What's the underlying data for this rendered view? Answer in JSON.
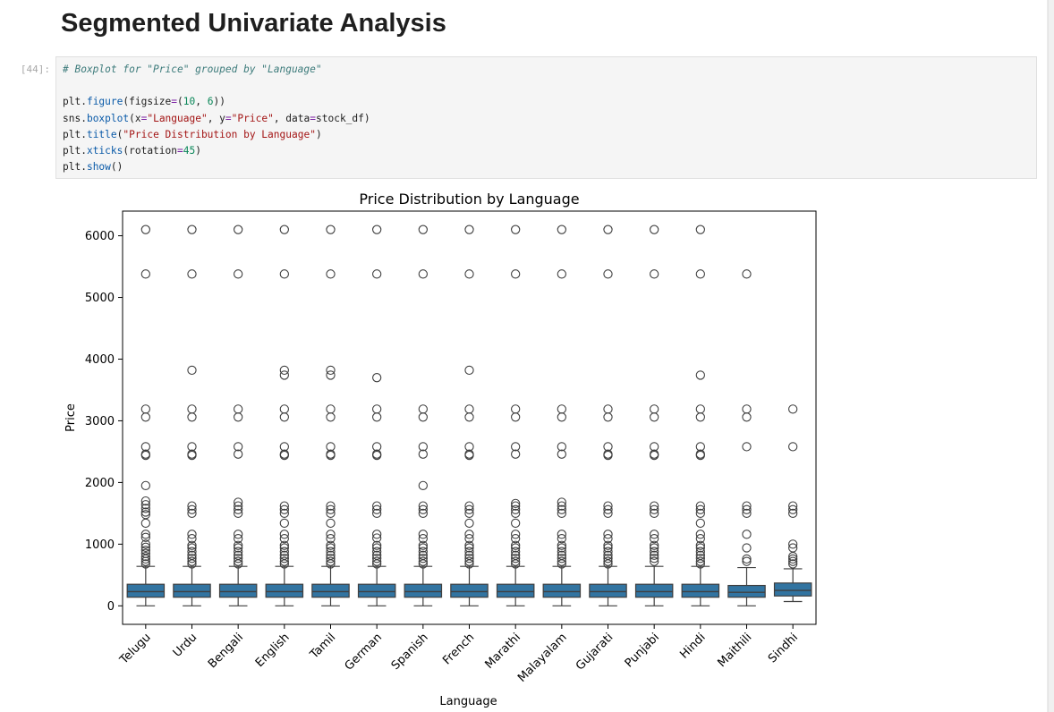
{
  "page": {
    "heading": "Segmented Univariate Analysis",
    "cell_prompt": "[44]:",
    "code_lines": [
      "# Boxplot for \"Price\" grouped by \"Language\"",
      "",
      "plt.figure(figsize=(10, 6))",
      "sns.boxplot(x=\"Language\", y=\"Price\", data=stock_df)",
      "plt.title(\"Price Distribution by Language\")",
      "plt.xticks(rotation=45)",
      "plt.show()"
    ]
  },
  "colors": {
    "box_fill": "#3274a1",
    "line": "#3f3f3f"
  },
  "chart_data": {
    "type": "box",
    "title": "Price Distribution by Language",
    "xlabel": "Language",
    "ylabel": "Price",
    "ylim": [
      -300,
      6400
    ],
    "yticks": [
      0,
      1000,
      2000,
      3000,
      4000,
      5000,
      6000
    ],
    "categories": [
      "Telugu",
      "Urdu",
      "Bengali",
      "English",
      "Tamil",
      "German",
      "Spanish",
      "French",
      "Marathi",
      "Malayalam",
      "Gujarati",
      "Punjabi",
      "Hindi",
      "Maithili",
      "Sindhi"
    ],
    "boxes": [
      {
        "q1": 140,
        "median": 230,
        "q3": 350,
        "whislo": 0,
        "whishi": 640
      },
      {
        "q1": 140,
        "median": 230,
        "q3": 350,
        "whislo": 0,
        "whishi": 640
      },
      {
        "q1": 140,
        "median": 230,
        "q3": 350,
        "whislo": 0,
        "whishi": 640
      },
      {
        "q1": 140,
        "median": 230,
        "q3": 350,
        "whislo": 0,
        "whishi": 640
      },
      {
        "q1": 140,
        "median": 230,
        "q3": 350,
        "whislo": 0,
        "whishi": 640
      },
      {
        "q1": 140,
        "median": 230,
        "q3": 350,
        "whislo": 0,
        "whishi": 640
      },
      {
        "q1": 140,
        "median": 230,
        "q3": 350,
        "whislo": 0,
        "whishi": 640
      },
      {
        "q1": 140,
        "median": 230,
        "q3": 350,
        "whislo": 0,
        "whishi": 640
      },
      {
        "q1": 140,
        "median": 230,
        "q3": 350,
        "whislo": 0,
        "whishi": 640
      },
      {
        "q1": 140,
        "median": 230,
        "q3": 350,
        "whislo": 0,
        "whishi": 640
      },
      {
        "q1": 140,
        "median": 230,
        "q3": 350,
        "whislo": 0,
        "whishi": 640
      },
      {
        "q1": 140,
        "median": 230,
        "q3": 350,
        "whislo": 0,
        "whishi": 640
      },
      {
        "q1": 140,
        "median": 230,
        "q3": 350,
        "whislo": 0,
        "whishi": 640
      },
      {
        "q1": 140,
        "median": 220,
        "q3": 330,
        "whislo": 0,
        "whishi": 620
      },
      {
        "q1": 160,
        "median": 250,
        "q3": 370,
        "whislo": 70,
        "whishi": 600
      }
    ],
    "outliers": [
      [
        6100,
        5380,
        3190,
        3060,
        2580,
        2460,
        2440,
        1950,
        1700,
        1640,
        1580,
        1520,
        1480,
        1340,
        1160,
        1110,
        1000,
        950,
        900,
        850,
        800,
        760,
        720,
        680
      ],
      [
        6100,
        5380,
        3820,
        3190,
        3060,
        2580,
        2460,
        2440,
        1620,
        1560,
        1500,
        1160,
        1090,
        980,
        940,
        880,
        820,
        770,
        720,
        680
      ],
      [
        6100,
        5380,
        3190,
        3060,
        2580,
        2460,
        1680,
        1620,
        1560,
        1500,
        1160,
        1090,
        980,
        940,
        880,
        820,
        770,
        720,
        680
      ],
      [
        6100,
        5380,
        3820,
        3740,
        3190,
        3060,
        2580,
        2460,
        2440,
        1620,
        1560,
        1500,
        1340,
        1160,
        1090,
        980,
        940,
        880,
        820,
        770,
        720,
        680
      ],
      [
        6100,
        5380,
        3820,
        3740,
        3190,
        3060,
        2580,
        2460,
        2440,
        1620,
        1560,
        1500,
        1340,
        1160,
        1090,
        980,
        940,
        880,
        820,
        770,
        720,
        680
      ],
      [
        6100,
        5380,
        3700,
        3190,
        3060,
        2580,
        2460,
        2440,
        1620,
        1560,
        1500,
        1160,
        1100,
        980,
        940,
        880,
        820,
        770,
        720,
        680
      ],
      [
        6100,
        5380,
        3190,
        3060,
        2580,
        2460,
        1950,
        1620,
        1560,
        1500,
        1160,
        1090,
        980,
        940,
        880,
        820,
        770,
        720,
        680
      ],
      [
        6100,
        5380,
        3820,
        3190,
        3060,
        2580,
        2460,
        2440,
        1620,
        1560,
        1500,
        1340,
        1160,
        1090,
        980,
        940,
        880,
        820,
        770,
        720,
        680
      ],
      [
        6100,
        5380,
        3190,
        3060,
        2580,
        2460,
        1660,
        1620,
        1560,
        1500,
        1340,
        1160,
        1090,
        980,
        940,
        880,
        820,
        770,
        720,
        680
      ],
      [
        6100,
        5380,
        3190,
        3060,
        2580,
        2460,
        1680,
        1620,
        1560,
        1500,
        1160,
        1090,
        980,
        940,
        880,
        820,
        770,
        720,
        680
      ],
      [
        6100,
        5380,
        3190,
        3060,
        2580,
        2460,
        2440,
        1620,
        1560,
        1500,
        1160,
        1090,
        980,
        940,
        880,
        820,
        770,
        720,
        680
      ],
      [
        6100,
        5380,
        3190,
        3060,
        2580,
        2460,
        2440,
        1620,
        1560,
        1500,
        1160,
        1090,
        980,
        940,
        880,
        820,
        770,
        720
      ],
      [
        6100,
        5380,
        3740,
        3190,
        3060,
        2580,
        2460,
        2440,
        1620,
        1560,
        1500,
        1340,
        1160,
        1090,
        980,
        940,
        880,
        820,
        770,
        720,
        680
      ],
      [
        5380,
        3190,
        3060,
        2580,
        1620,
        1560,
        1500,
        1160,
        940,
        760,
        720
      ],
      [
        3190,
        2580,
        1620,
        1560,
        1500,
        1000,
        940,
        800,
        760,
        720,
        680
      ]
    ]
  }
}
